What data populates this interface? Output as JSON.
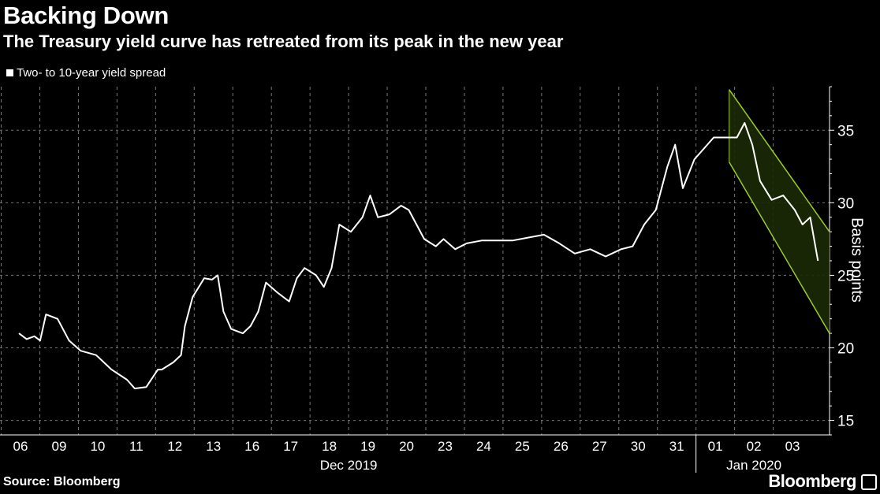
{
  "header": {
    "title": "Backing Down",
    "subtitle": "The Treasury yield curve has retreated from its peak in the new year"
  },
  "footer": {
    "source": "Source: Bloomberg",
    "brand": "Bloomberg"
  },
  "colors": {
    "background": "#000000",
    "series": "#ffffff",
    "channel_line": "#9acd32",
    "channel_fill": "#1b2a06"
  },
  "chart_data": {
    "type": "line",
    "title": "Backing Down",
    "subtitle": "The Treasury yield curve has retreated from its peak in the new year",
    "ylabel": "Basis points",
    "ylim": [
      14,
      38
    ],
    "yticks": [
      15,
      20,
      25,
      30,
      35
    ],
    "grid": true,
    "legend_position": "top-left",
    "x_categories": [
      "06",
      "09",
      "10",
      "11",
      "12",
      "13",
      "16",
      "17",
      "18",
      "19",
      "20",
      "23",
      "24",
      "25",
      "26",
      "27",
      "30",
      "31",
      "01",
      "02",
      "03"
    ],
    "x_groups": [
      {
        "label": "Dec 2019",
        "from": "06",
        "to": "31"
      },
      {
        "label": "Jan 2020",
        "from": "01",
        "to": "03"
      }
    ],
    "series": [
      {
        "name": "Two- to 10-year yield spread",
        "x": [
          0,
          0.2,
          0.4,
          0.55,
          0.7,
          1.0,
          1.3,
          1.6,
          2.0,
          2.4,
          2.8,
          3.0,
          3.3,
          3.6,
          3.7,
          4.0,
          4.2,
          4.3,
          4.5,
          4.8,
          5.0,
          5.15,
          5.3,
          5.5,
          5.8,
          6.0,
          6.2,
          6.4,
          6.7,
          7.0,
          7.2,
          7.4,
          7.7,
          7.9,
          8.1,
          8.3,
          8.6,
          8.9,
          9.1,
          9.3,
          9.6,
          9.9,
          10.1,
          10.5,
          10.8,
          11.0,
          11.3,
          11.6,
          12.0,
          12.4,
          12.8,
          13.2,
          13.6,
          14.0,
          14.4,
          14.8,
          15.2,
          15.6,
          15.9,
          16.2,
          16.5,
          16.8,
          17.0,
          17.2,
          17.5,
          18.0,
          18.4,
          18.6,
          18.8,
          19.0,
          19.2,
          19.5,
          19.8,
          20.1,
          20.3,
          20.5,
          20.7
        ],
        "values": [
          21.0,
          20.6,
          20.8,
          20.5,
          22.3,
          22.0,
          20.5,
          19.8,
          19.5,
          18.5,
          17.8,
          17.2,
          17.3,
          18.5,
          18.5,
          19.0,
          19.5,
          21.5,
          23.5,
          24.8,
          24.7,
          25.0,
          22.5,
          21.3,
          21.0,
          21.5,
          22.5,
          24.5,
          23.8,
          23.2,
          24.8,
          25.5,
          25.0,
          24.2,
          25.5,
          28.5,
          28.0,
          29.0,
          30.5,
          29.0,
          29.2,
          29.8,
          29.5,
          27.5,
          27.0,
          27.5,
          26.8,
          27.2,
          27.4,
          27.4,
          27.4,
          27.6,
          27.8,
          27.2,
          26.5,
          26.8,
          26.3,
          26.8,
          27.0,
          28.5,
          29.5,
          32.5,
          34.0,
          31.0,
          33.0,
          34.5,
          34.5,
          34.5,
          35.5,
          34.0,
          31.5,
          30.2,
          30.5,
          29.5,
          28.5,
          29.0,
          26.0
        ]
      }
    ],
    "annotations": [
      {
        "type": "downward-channel",
        "upper_start": [
          18.4,
          37.8
        ],
        "upper_end": [
          21.0,
          28.0
        ],
        "lower_start": [
          18.4,
          32.8
        ],
        "lower_end": [
          21.0,
          21.0
        ]
      }
    ]
  }
}
